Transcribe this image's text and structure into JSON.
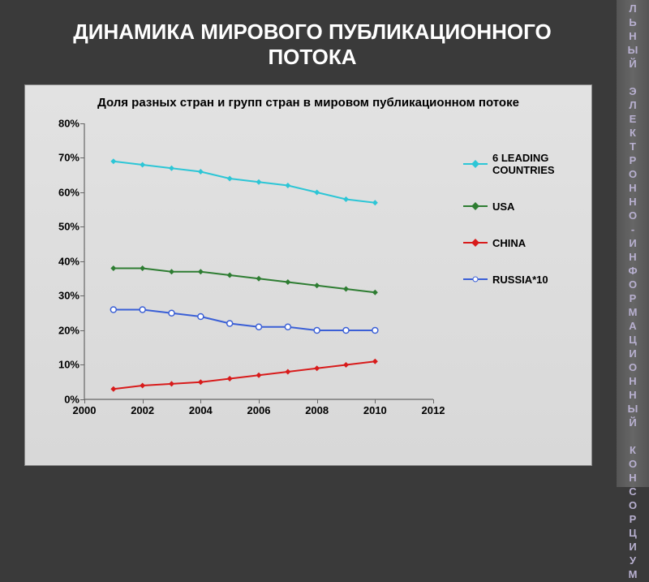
{
  "sidebar": {
    "label": "НАЦИОНАЛЬНЫЙ ЭЛЕКТРОННО-ИНФОРМАЦИОННЫЙ КОНСОРЦИУМ"
  },
  "main_title": "ДИНАМИКА МИРОВОГО ПУБЛИКАЦИОННОГО ПОТОКА",
  "chart": {
    "type": "line",
    "title": "Доля разных стран и групп стран в мировом публикационном потоке",
    "background_color": "#dcdcdc",
    "axis_color": "#666666",
    "text_color": "#000000",
    "label_fontsize": 13,
    "title_fontsize": 15,
    "x": {
      "min": 2000,
      "max": 2012,
      "tick_step": 2,
      "ticks": [
        2000,
        2002,
        2004,
        2006,
        2008,
        2010,
        2012
      ]
    },
    "y": {
      "min": 0,
      "max": 80,
      "tick_step": 10,
      "suffix": "%",
      "ticks": [
        0,
        10,
        20,
        30,
        40,
        50,
        60,
        70,
        80
      ]
    },
    "years": [
      2001,
      2002,
      2003,
      2004,
      2005,
      2006,
      2007,
      2008,
      2009,
      2010
    ],
    "series": [
      {
        "name": "6 LEADING COUNTRIES",
        "color": "#2dc6d6",
        "marker": "diamond-filled",
        "values": [
          69,
          68,
          67,
          66,
          64,
          63,
          62,
          60,
          58,
          57
        ]
      },
      {
        "name": "USA",
        "color": "#2e7d32",
        "marker": "diamond-filled",
        "values": [
          38,
          38,
          37,
          37,
          36,
          35,
          34,
          33,
          32,
          31
        ]
      },
      {
        "name": "CHINA",
        "color": "#d81b1b",
        "marker": "diamond-filled",
        "values": [
          3,
          4,
          4.5,
          5,
          6,
          7,
          8,
          9,
          10,
          11
        ]
      },
      {
        "name": "RUSSIA*10",
        "color": "#3a5fd6",
        "marker": "circle-open",
        "values": [
          26,
          26,
          25,
          24,
          22,
          21,
          21,
          20,
          20,
          20
        ]
      }
    ]
  }
}
